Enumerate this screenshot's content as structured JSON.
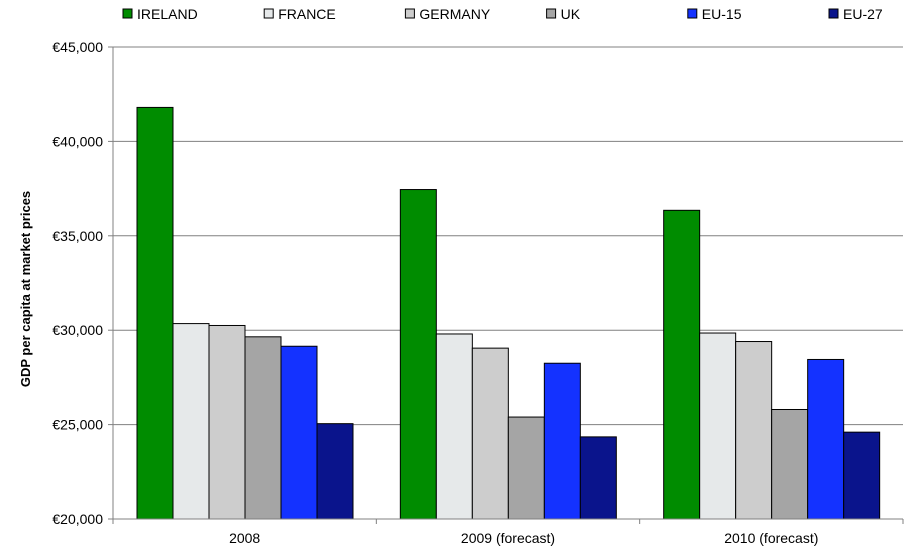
{
  "chart_data": {
    "type": "bar",
    "title": "",
    "xlabel": "",
    "ylabel": "GDP per capita at market prices",
    "categories": [
      "2008",
      "2009 (forecast)",
      "2010 (forecast)"
    ],
    "series": [
      {
        "name": "IRELAND",
        "color": "#008c00",
        "values": [
          41800,
          37450,
          36350
        ]
      },
      {
        "name": "FRANCE",
        "color": "#e6e9ea",
        "values": [
          30350,
          29800,
          29850
        ]
      },
      {
        "name": "GERMANY",
        "color": "#cdcdcd",
        "values": [
          30250,
          29050,
          29400
        ]
      },
      {
        "name": "UK",
        "color": "#a5a5a5",
        "values": [
          29650,
          25400,
          25800
        ]
      },
      {
        "name": "EU-15",
        "color": "#1432ff",
        "values": [
          29150,
          28250,
          28450
        ]
      },
      {
        "name": "EU-27",
        "color": "#0a148c",
        "values": [
          25050,
          24350,
          24600
        ]
      }
    ],
    "ylim": [
      20000,
      45000
    ],
    "yticks": [
      20000,
      25000,
      30000,
      35000,
      40000,
      45000
    ],
    "ytick_labels": [
      "€20,000",
      "€25,000",
      "€30,000",
      "€35,000",
      "€40,000",
      "€45,000"
    ],
    "grid": true,
    "legend_position": "top"
  }
}
